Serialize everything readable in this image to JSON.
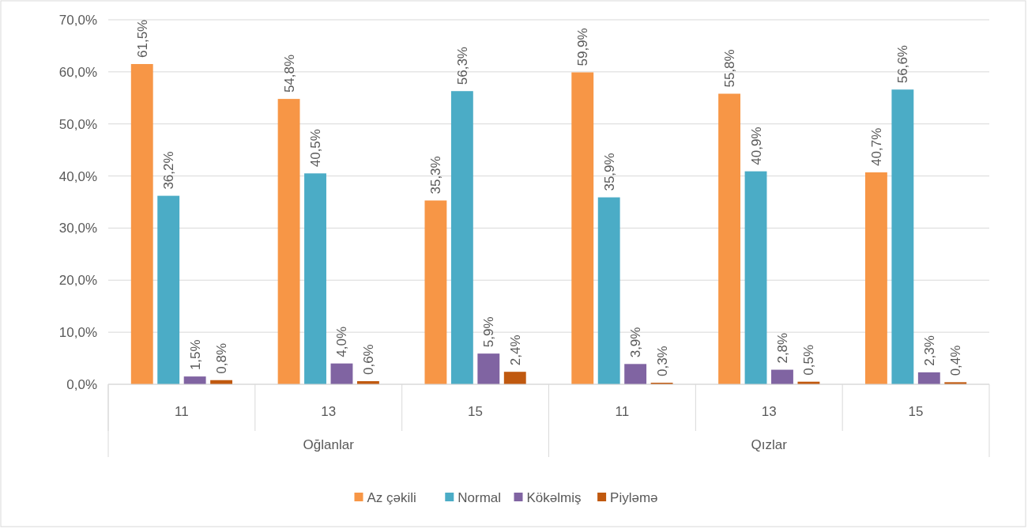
{
  "chart_data": {
    "type": "bar",
    "categories": [
      "11",
      "13",
      "15",
      "11",
      "13",
      "15"
    ],
    "annotations": [
      "Oğlanlar",
      "Qızlar"
    ],
    "series": [
      {
        "name": "Az çəkili",
        "color": "#f79646",
        "values": [
          61.5,
          54.8,
          35.3,
          59.9,
          55.8,
          40.7
        ],
        "value_labels": [
          "61,5%",
          "54,8%",
          "35,3%",
          "59,9%",
          "55,8%",
          "40,7%"
        ]
      },
      {
        "name": "Normal",
        "color": "#4bacc6",
        "values": [
          36.2,
          40.5,
          56.3,
          35.9,
          40.9,
          56.6
        ],
        "value_labels": [
          "36,2%",
          "40,5%",
          "56,3%",
          "35,9%",
          "40,9%",
          "56,6%"
        ]
      },
      {
        "name": "Kökəlmiş",
        "color": "#8064a2",
        "values": [
          1.5,
          4.0,
          5.9,
          3.9,
          2.8,
          2.3
        ],
        "value_labels": [
          "1,5%",
          "4,0%",
          "5,9%",
          "3,9%",
          "2,8%",
          "2,3%"
        ]
      },
      {
        "name": "Piyləmə",
        "color": "#c0590f",
        "values": [
          0.8,
          0.6,
          2.4,
          0.3,
          0.5,
          0.4
        ],
        "value_labels": [
          "0,8%",
          "0,6%",
          "2,4%",
          "0,3%",
          "0,5%",
          "0,4%"
        ]
      }
    ],
    "ylim": [
      0,
      70
    ],
    "yticks": [
      {
        "value": 0,
        "label": "0,0%"
      },
      {
        "value": 10,
        "label": "10,0%"
      },
      {
        "value": 20,
        "label": "20,0%"
      },
      {
        "value": 30,
        "label": "30,0%"
      },
      {
        "value": 40,
        "label": "40,0%"
      },
      {
        "value": 50,
        "label": "50,0%"
      },
      {
        "value": 60,
        "label": "60,0%"
      },
      {
        "value": 70,
        "label": "70,0%"
      }
    ],
    "grid": "y",
    "legend": "bottom"
  }
}
